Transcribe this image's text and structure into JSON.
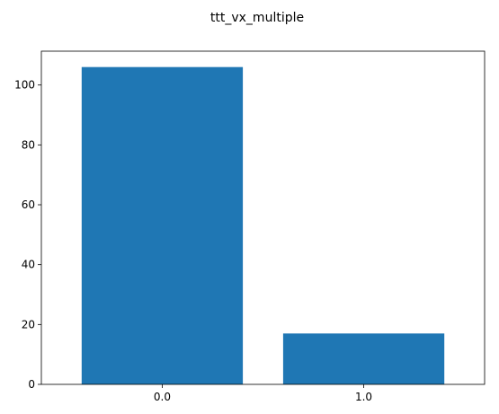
{
  "chart_data": {
    "type": "bar",
    "title": "ttt_vx_multiple",
    "xlabel": "",
    "ylabel": "",
    "categories": [
      "0.0",
      "1.0"
    ],
    "values": [
      106,
      17
    ],
    "ylim": [
      0,
      111.3
    ],
    "yticks": [
      "0",
      "20",
      "40",
      "60",
      "80",
      "100"
    ],
    "grid": false,
    "legend": "none",
    "bar_color": "#1f77b4"
  }
}
